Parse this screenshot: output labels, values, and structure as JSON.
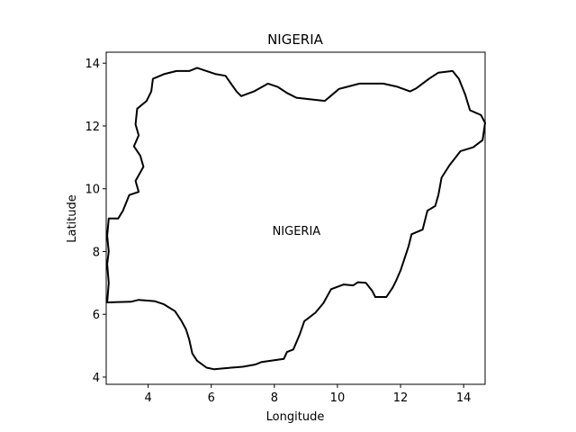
{
  "chart_data": {
    "type": "map",
    "title": "NIGERIA",
    "xlabel": "Longitude",
    "ylabel": "Latitude",
    "xlim": [
      2.67,
      14.68
    ],
    "ylim": [
      3.77,
      14.35
    ],
    "x_ticks": [
      4,
      6,
      8,
      10,
      12,
      14
    ],
    "y_ticks": [
      4,
      6,
      8,
      10,
      12,
      14
    ],
    "grid": false,
    "annotations": [
      {
        "text": "NIGERIA",
        "lon": 8.7,
        "lat": 8.65
      }
    ],
    "outline_color": "#000000",
    "boundary": [
      [
        2.7,
        6.38
      ],
      [
        3.45,
        6.4
      ],
      [
        3.7,
        6.46
      ],
      [
        4.2,
        6.42
      ],
      [
        4.5,
        6.32
      ],
      [
        4.85,
        6.1
      ],
      [
        5.05,
        5.8
      ],
      [
        5.2,
        5.52
      ],
      [
        5.3,
        5.2
      ],
      [
        5.4,
        4.75
      ],
      [
        5.55,
        4.52
      ],
      [
        5.85,
        4.3
      ],
      [
        6.1,
        4.25
      ],
      [
        6.4,
        4.28
      ],
      [
        7.0,
        4.33
      ],
      [
        7.4,
        4.4
      ],
      [
        7.6,
        4.48
      ],
      [
        7.9,
        4.52
      ],
      [
        8.3,
        4.58
      ],
      [
        8.4,
        4.8
      ],
      [
        8.6,
        4.88
      ],
      [
        8.8,
        5.35
      ],
      [
        8.95,
        5.78
      ],
      [
        9.3,
        6.05
      ],
      [
        9.55,
        6.35
      ],
      [
        9.8,
        6.8
      ],
      [
        10.2,
        6.95
      ],
      [
        10.5,
        6.92
      ],
      [
        10.65,
        7.02
      ],
      [
        10.9,
        7.0
      ],
      [
        11.1,
        6.75
      ],
      [
        11.2,
        6.55
      ],
      [
        11.55,
        6.55
      ],
      [
        11.75,
        6.85
      ],
      [
        11.85,
        7.05
      ],
      [
        12.0,
        7.4
      ],
      [
        12.25,
        8.15
      ],
      [
        12.35,
        8.55
      ],
      [
        12.7,
        8.7
      ],
      [
        12.85,
        9.3
      ],
      [
        13.1,
        9.45
      ],
      [
        13.2,
        9.8
      ],
      [
        13.3,
        10.35
      ],
      [
        13.55,
        10.75
      ],
      [
        13.9,
        11.2
      ],
      [
        14.3,
        11.32
      ],
      [
        14.6,
        11.55
      ],
      [
        14.68,
        12.1
      ],
      [
        14.55,
        12.35
      ],
      [
        14.2,
        12.5
      ],
      [
        14.05,
        13.0
      ],
      [
        13.85,
        13.5
      ],
      [
        13.65,
        13.75
      ],
      [
        13.2,
        13.7
      ],
      [
        12.9,
        13.5
      ],
      [
        12.5,
        13.2
      ],
      [
        12.3,
        13.1
      ],
      [
        11.9,
        13.25
      ],
      [
        11.45,
        13.35
      ],
      [
        10.7,
        13.35
      ],
      [
        10.05,
        13.18
      ],
      [
        9.6,
        12.8
      ],
      [
        8.7,
        12.9
      ],
      [
        8.4,
        13.05
      ],
      [
        8.1,
        13.25
      ],
      [
        7.8,
        13.35
      ],
      [
        7.35,
        13.1
      ],
      [
        6.95,
        12.95
      ],
      [
        6.8,
        13.1
      ],
      [
        6.45,
        13.6
      ],
      [
        6.15,
        13.65
      ],
      [
        5.85,
        13.75
      ],
      [
        5.55,
        13.85
      ],
      [
        5.3,
        13.75
      ],
      [
        4.9,
        13.75
      ],
      [
        4.5,
        13.65
      ],
      [
        4.15,
        13.5
      ],
      [
        4.1,
        13.1
      ],
      [
        3.95,
        12.8
      ],
      [
        3.65,
        12.55
      ],
      [
        3.6,
        12.05
      ],
      [
        3.7,
        11.7
      ],
      [
        3.55,
        11.35
      ],
      [
        3.75,
        11.05
      ],
      [
        3.85,
        10.7
      ],
      [
        3.6,
        10.25
      ],
      [
        3.7,
        9.9
      ],
      [
        3.4,
        9.8
      ],
      [
        3.2,
        9.3
      ],
      [
        3.05,
        9.05
      ],
      [
        2.75,
        9.05
      ],
      [
        2.7,
        8.5
      ],
      [
        2.75,
        8.0
      ],
      [
        2.7,
        7.6
      ],
      [
        2.75,
        7.0
      ],
      [
        2.7,
        6.38
      ]
    ]
  }
}
